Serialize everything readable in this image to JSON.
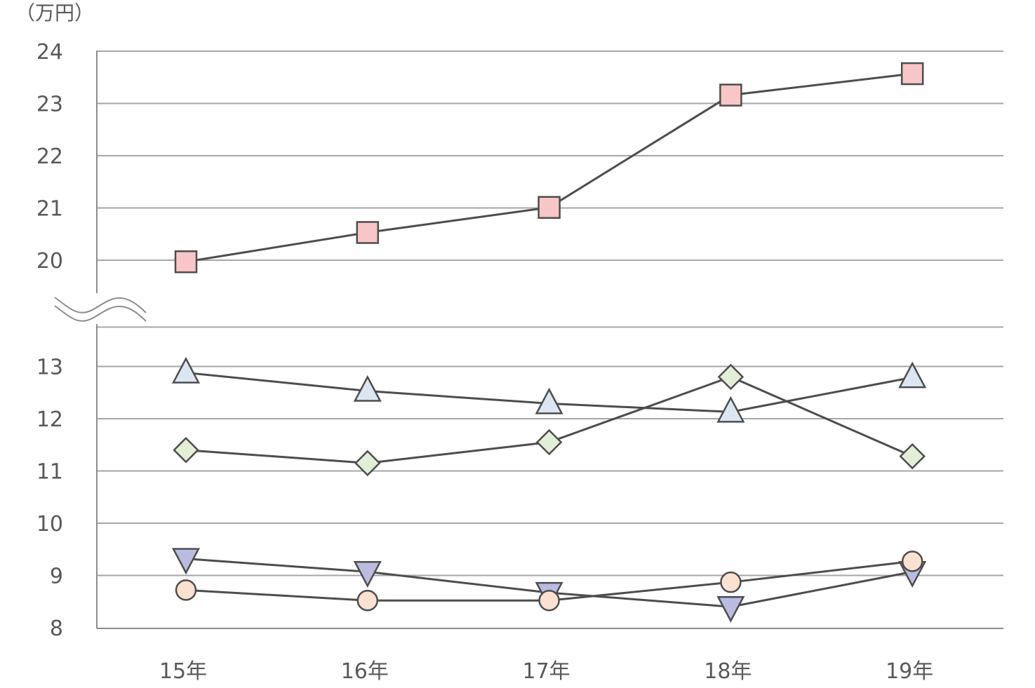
{
  "chart_data": {
    "type": "line",
    "unit_label": "（万円）",
    "categories": [
      "15年",
      "16年",
      "17年",
      "18年",
      "19年"
    ],
    "y_ticks_upper": [
      "20",
      "21",
      "22",
      "23",
      "24"
    ],
    "y_ticks_lower": [
      "8",
      "9",
      "10",
      "11",
      "12",
      "13"
    ],
    "axis_break": {
      "lower_max": 13.7,
      "upper_min": 19.0
    },
    "grid": true,
    "legend": "none",
    "series": [
      {
        "marker": "square",
        "color": "#f8c6c6",
        "values": [
          19.97,
          20.53,
          21.01,
          23.16,
          23.57
        ]
      },
      {
        "marker": "triangle-up",
        "color": "#dbe6f2",
        "values": [
          12.88,
          12.53,
          12.29,
          12.13,
          12.79
        ]
      },
      {
        "marker": "diamond",
        "color": "#e3eed7",
        "values": [
          11.4,
          11.15,
          11.55,
          12.8,
          11.28
        ]
      },
      {
        "marker": "triangle-down",
        "color": "#b9bce0",
        "values": [
          9.32,
          9.07,
          8.67,
          8.4,
          9.07
        ]
      },
      {
        "marker": "circle",
        "color": "#fbe1cf",
        "values": [
          8.72,
          8.52,
          8.52,
          8.87,
          9.27
        ]
      }
    ]
  }
}
